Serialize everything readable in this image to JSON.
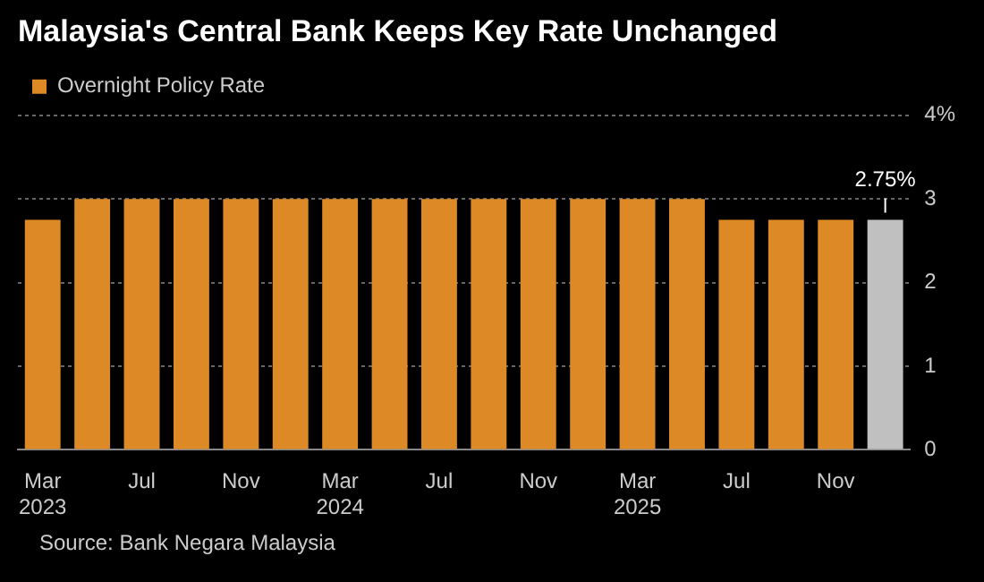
{
  "chart_data": {
    "type": "bar",
    "title": "Malaysia's Central Bank Keeps Key Rate Unchanged",
    "categories": [
      "Mar 2023",
      null,
      "Jul",
      null,
      "Nov",
      null,
      "Mar 2024",
      null,
      "Jul",
      null,
      "Nov",
      null,
      "Mar 2025",
      null,
      "Jul",
      null,
      "Nov",
      null
    ],
    "series": [
      {
        "name": "Overnight Policy Rate",
        "color": "#dd8a26",
        "colors": [
          "#dd8a26",
          "#dd8a26",
          "#dd8a26",
          "#dd8a26",
          "#dd8a26",
          "#dd8a26",
          "#dd8a26",
          "#dd8a26",
          "#dd8a26",
          "#dd8a26",
          "#dd8a26",
          "#dd8a26",
          "#dd8a26",
          "#dd8a26",
          "#dd8a26",
          "#dd8a26",
          "#dd8a26",
          "#c0c0c0"
        ],
        "values": [
          2.75,
          3,
          3,
          3,
          3,
          3,
          3,
          3,
          3,
          3,
          3,
          3,
          3,
          3,
          2.75,
          2.75,
          2.75,
          2.75
        ],
        "value_labels": [
          null,
          null,
          null,
          null,
          null,
          null,
          null,
          null,
          null,
          null,
          null,
          null,
          null,
          null,
          null,
          null,
          null,
          "2.75%"
        ]
      }
    ],
    "ylim": [
      0,
      4
    ],
    "yticks": [
      0,
      1,
      2,
      3,
      {
        "value": 4,
        "label": "4%"
      }
    ],
    "grid": "y",
    "legend": "top left",
    "annotations": [
      "Source: Bank Negara Malaysia"
    ]
  }
}
